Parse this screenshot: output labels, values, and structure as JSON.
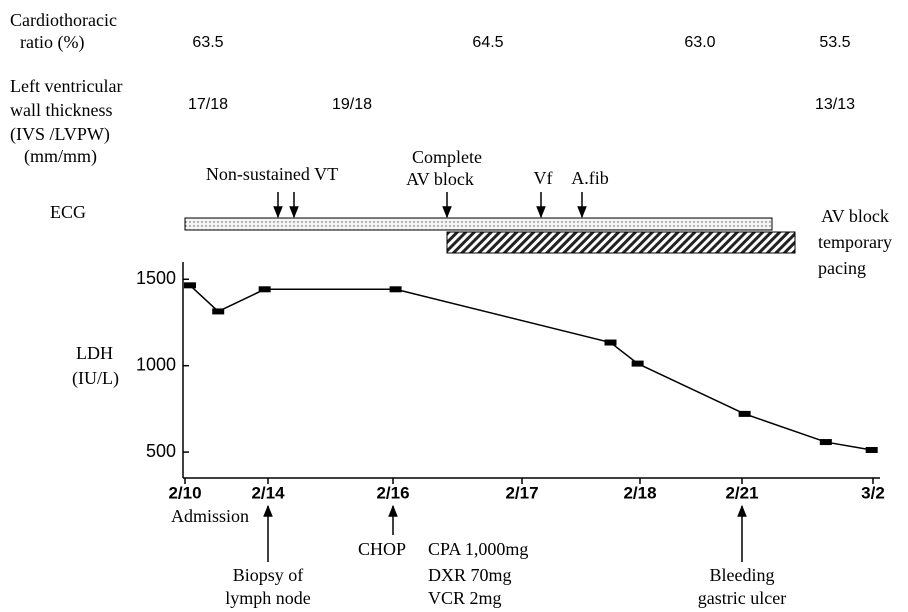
{
  "cardiothoracic_ratio": {
    "label": [
      "Cardiothoracic",
      "ratio (%)"
    ],
    "values": [
      "63.5",
      "64.5",
      "63.0",
      "53.5"
    ]
  },
  "lv_wall_thickness": {
    "label": [
      "Left ventricular",
      "wall thickness",
      "(IVS /LVPW)",
      "(mm/mm)"
    ],
    "values": [
      "17/18",
      "19/18",
      "13/13"
    ]
  },
  "ecg": {
    "label": "ECG",
    "events": [
      [
        "Non-sustained VT"
      ],
      [
        "Complete",
        "AV block"
      ],
      [
        "Vf"
      ],
      [
        "A.fib"
      ]
    ],
    "pacing_label": [
      "AV block",
      "temporary",
      "pacing"
    ]
  },
  "chart_data": {
    "type": "line",
    "y_label": [
      "LDH",
      "(IU/L)"
    ],
    "x": [
      0.06,
      0.4,
      0.96,
      2.02,
      3.75,
      3.98,
      5.02,
      5.64,
      5.99
    ],
    "values": [
      1465,
      1314,
      1442,
      1442,
      1134,
      1012,
      721,
      558,
      512
    ],
    "color": "#000000",
    "xlim": [
      0,
      6
    ],
    "xticks": [
      {
        "value": 0,
        "label": "2/10"
      },
      {
        "value": 1,
        "label": "2/14"
      },
      {
        "value": 2,
        "label": "2/16"
      },
      {
        "value": 3,
        "label": "2/17"
      },
      {
        "value": 4,
        "label": "2/18"
      },
      {
        "value": 5,
        "label": "2/21"
      },
      {
        "value": 6,
        "label": "3/2"
      }
    ],
    "ylim": [
      350,
      1600
    ],
    "yticks": [
      500,
      1000,
      1500
    ]
  },
  "annotations": {
    "admission": "Admission",
    "biopsy": [
      "Biopsy of",
      "lymph node"
    ],
    "chop": "CHOP",
    "chop_drugs": [
      "CPA 1,000mg",
      "DXR 70mg",
      "VCR 2mg"
    ],
    "bleeding": [
      "Bleeding",
      "gastric ulcer"
    ]
  }
}
